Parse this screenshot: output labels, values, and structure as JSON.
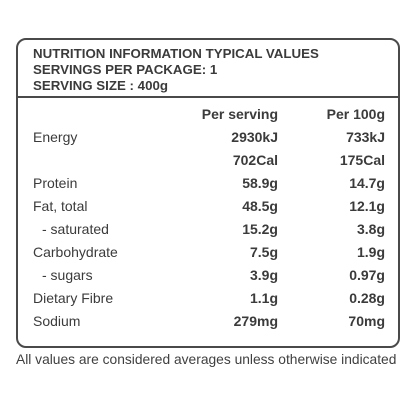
{
  "header": {
    "line1": "NUTRITION INFORMATION TYPICAL VALUES",
    "line2": "SERVINGS PER PACKAGE: 1",
    "line3": "SERVING SIZE : 400g"
  },
  "columns": {
    "per_serving": "Per serving",
    "per_100g": "Per 100g"
  },
  "rows": [
    {
      "label": "Energy",
      "per_serving": "2930kJ",
      "per_100g": "733kJ"
    },
    {
      "label": "",
      "per_serving": "702Cal",
      "per_100g": "175Cal"
    },
    {
      "label": "Protein",
      "per_serving": "58.9g",
      "per_100g": "14.7g"
    },
    {
      "label": "Fat, total",
      "per_serving": "48.5g",
      "per_100g": "12.1g"
    },
    {
      "label": "- saturated",
      "per_serving": "15.2g",
      "per_100g": "3.8g"
    },
    {
      "label": "Carbohydrate",
      "per_serving": "7.5g",
      "per_100g": "1.9g"
    },
    {
      "label": "- sugars",
      "per_serving": "3.9g",
      "per_100g": "0.97g"
    },
    {
      "label": "Dietary Fibre",
      "per_serving": "1.1g",
      "per_100g": "0.28g"
    },
    {
      "label": "Sodium",
      "per_serving": "279mg",
      "per_100g": "70mg"
    }
  ],
  "footer": {
    "note": "All values are considered averages unless otherwise indicated"
  }
}
